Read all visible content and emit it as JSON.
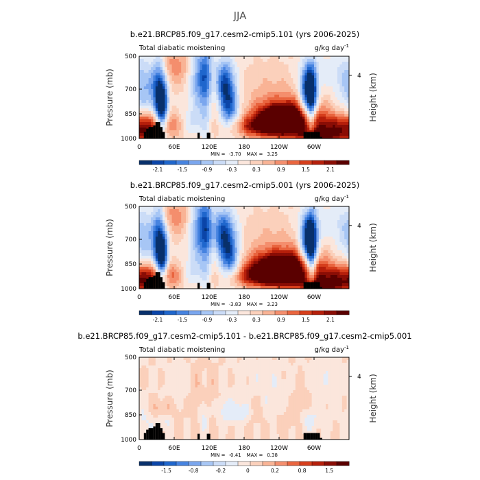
{
  "main_title": "JJA",
  "colors": {
    "palette": [
      "#08306b",
      "#0b45a8",
      "#1f66cc",
      "#4683e0",
      "#7aa6ee",
      "#a7c6f5",
      "#cbdcf7",
      "#e4ecf8",
      "#fbe6dc",
      "#fbd0bb",
      "#f9b395",
      "#f48e6d",
      "#e9653f",
      "#d63e1c",
      "#b51f0b",
      "#8a0d05",
      "#5a0000"
    ],
    "mask": "#000000",
    "frame": "#000000"
  },
  "chart_data": [
    {
      "type": "heatmap",
      "title": "b.e21.BRCP85.f09_g17.cesm2-cmip5.101 (yrs 2006-2025)",
      "left_label": "Total diabatic moistening",
      "right_label": "g/kg day",
      "unit_exponent": "-1",
      "ylabel": "Pressure (mb)",
      "ylabel_right": "Height (km)",
      "yticks": [
        "500",
        "700",
        "850",
        "1000"
      ],
      "ytick_values": [
        500,
        700,
        850,
        1000
      ],
      "right_ticks": [
        "4"
      ],
      "right_tick_pressure": 616,
      "xticks": [
        "0",
        "60E",
        "120E",
        "180",
        "120W",
        "60W"
      ],
      "xtick_values": [
        0,
        60,
        120,
        180,
        240,
        300
      ],
      "xlim": [
        0,
        360
      ],
      "ylim": [
        1000,
        500
      ],
      "min_text": "MIN =",
      "min_value": "-3.70",
      "max_text": "MAX =",
      "max_value": "3.25",
      "colorbar_labels": [
        "-2.1",
        "-1.5",
        "-0.9",
        "-0.3",
        "0.3",
        "0.9",
        "1.5",
        "2.1"
      ],
      "scale": 1.0,
      "blobs": [
        [
          245,
          880,
          32,
          55,
          2.6
        ],
        [
          265,
          870,
          38,
          80,
          1.6
        ],
        [
          218,
          930,
          40,
          40,
          1.7
        ],
        [
          310,
          980,
          25,
          30,
          1.8
        ],
        [
          340,
          930,
          30,
          55,
          1.5
        ],
        [
          40,
          915,
          22,
          55,
          1.2
        ],
        [
          12,
          960,
          18,
          60,
          0.9
        ],
        [
          150,
          650,
          60,
          200,
          -0.1
        ],
        [
          8,
          690,
          18,
          120,
          -1.1
        ],
        [
          33,
          700,
          8,
          170,
          -1.5
        ],
        [
          40,
          820,
          7,
          130,
          -2.4
        ],
        [
          103,
          620,
          12,
          140,
          -1.5
        ],
        [
          115,
          640,
          7,
          220,
          -1.0
        ],
        [
          147,
          680,
          12,
          110,
          -2.2
        ],
        [
          157,
          830,
          12,
          90,
          -1.3
        ],
        [
          290,
          700,
          10,
          100,
          -2.6
        ],
        [
          296,
          790,
          6,
          160,
          -1.7
        ],
        [
          285,
          850,
          10,
          60,
          -1.0
        ],
        [
          330,
          580,
          40,
          100,
          -0.4
        ],
        [
          90,
          900,
          14,
          60,
          -0.6
        ],
        [
          60,
          560,
          25,
          80,
          0.8
        ],
        [
          130,
          780,
          8,
          80,
          0.6
        ],
        [
          228,
          760,
          38,
          120,
          0.5
        ]
      ],
      "topography": [
        [
          8,
          960
        ],
        [
          12,
          940
        ],
        [
          16,
          930
        ],
        [
          20,
          930
        ],
        [
          24,
          920
        ],
        [
          28,
          900
        ],
        [
          32,
          900
        ],
        [
          36,
          930
        ],
        [
          40,
          960
        ],
        [
          100,
          965
        ],
        [
          116,
          965
        ],
        [
          118,
          965
        ],
        [
          282,
          960
        ],
        [
          286,
          960
        ],
        [
          290,
          960
        ],
        [
          294,
          960
        ],
        [
          298,
          960
        ],
        [
          302,
          960
        ],
        [
          306,
          960
        ],
        [
          310,
          990
        ]
      ]
    },
    {
      "type": "heatmap",
      "title": "b.e21.BRCP85.f09_g17.cesm2-cmip5.001 (yrs 2006-2025)",
      "left_label": "Total diabatic moistening",
      "right_label": "g/kg day",
      "unit_exponent": "-1",
      "ylabel": "Pressure (mb)",
      "ylabel_right": "Height (km)",
      "yticks": [
        "500",
        "700",
        "850",
        "1000"
      ],
      "ytick_values": [
        500,
        700,
        850,
        1000
      ],
      "right_ticks": [
        "4"
      ],
      "right_tick_pressure": 616,
      "xticks": [
        "0",
        "60E",
        "120E",
        "180",
        "120W",
        "60W"
      ],
      "xtick_values": [
        0,
        60,
        120,
        180,
        240,
        300
      ],
      "xlim": [
        0,
        360
      ],
      "ylim": [
        1000,
        500
      ],
      "min_text": "MIN =",
      "min_value": "-3.83",
      "max_text": "MAX =",
      "max_value": "3.23",
      "colorbar_labels": [
        "-2.1",
        "-1.5",
        "-0.9",
        "-0.3",
        "0.3",
        "0.9",
        "1.5",
        "2.1"
      ],
      "scale": 1.0,
      "blobs": [
        [
          240,
          875,
          35,
          55,
          2.5
        ],
        [
          262,
          870,
          40,
          80,
          1.6
        ],
        [
          216,
          930,
          40,
          40,
          1.7
        ],
        [
          312,
          980,
          25,
          30,
          1.9
        ],
        [
          340,
          930,
          30,
          55,
          1.5
        ],
        [
          42,
          915,
          22,
          55,
          1.3
        ],
        [
          12,
          960,
          18,
          60,
          0.9
        ],
        [
          150,
          650,
          60,
          200,
          -0.1
        ],
        [
          8,
          690,
          18,
          120,
          -1.0
        ],
        [
          33,
          700,
          8,
          170,
          -1.6
        ],
        [
          40,
          820,
          7,
          130,
          -2.3
        ],
        [
          103,
          630,
          12,
          140,
          -1.6
        ],
        [
          115,
          640,
          7,
          220,
          -1.1
        ],
        [
          145,
          680,
          14,
          110,
          -2.3
        ],
        [
          157,
          830,
          12,
          90,
          -1.4
        ],
        [
          291,
          690,
          10,
          100,
          -2.7
        ],
        [
          296,
          790,
          6,
          160,
          -1.8
        ],
        [
          285,
          850,
          10,
          60,
          -1.0
        ],
        [
          330,
          580,
          40,
          100,
          -0.4
        ],
        [
          90,
          900,
          14,
          60,
          -0.6
        ],
        [
          60,
          560,
          25,
          80,
          0.8
        ],
        [
          130,
          780,
          8,
          80,
          0.6
        ],
        [
          228,
          760,
          38,
          120,
          0.5
        ]
      ],
      "topography": [
        [
          8,
          960
        ],
        [
          12,
          940
        ],
        [
          16,
          930
        ],
        [
          20,
          930
        ],
        [
          24,
          920
        ],
        [
          28,
          900
        ],
        [
          32,
          900
        ],
        [
          36,
          930
        ],
        [
          40,
          960
        ],
        [
          100,
          965
        ],
        [
          116,
          965
        ],
        [
          118,
          965
        ],
        [
          282,
          960
        ],
        [
          286,
          960
        ],
        [
          290,
          960
        ],
        [
          294,
          960
        ],
        [
          298,
          960
        ],
        [
          302,
          960
        ],
        [
          306,
          960
        ],
        [
          310,
          990
        ]
      ]
    },
    {
      "type": "heatmap",
      "title": "b.e21.BRCP85.f09_g17.cesm2-cmip5.101 - b.e21.BRCP85.f09_g17.cesm2-cmip5.001",
      "left_label": "Total diabatic moistening",
      "right_label": "g/kg day",
      "unit_exponent": "-1",
      "ylabel": "Pressure (mb)",
      "ylabel_right": "Height (km)",
      "yticks": [
        "500",
        "700",
        "850",
        "1000"
      ],
      "ytick_values": [
        500,
        700,
        850,
        1000
      ],
      "right_ticks": [
        "4"
      ],
      "right_tick_pressure": 616,
      "xticks": [
        "0",
        "60E",
        "120E",
        "180",
        "120W",
        "60W"
      ],
      "xtick_values": [
        0,
        60,
        120,
        180,
        240,
        300
      ],
      "xlim": [
        0,
        360
      ],
      "ylim": [
        1000,
        500
      ],
      "min_text": "MIN =",
      "min_value": "-0.41",
      "max_text": "MAX =",
      "max_value": "0.38",
      "colorbar_labels": [
        "-1.5",
        "-0.8",
        "-0.2",
        "0",
        "0.2",
        "0.8",
        "1.5"
      ],
      "scale": 0.12,
      "blobs": [
        [
          35,
          820,
          12,
          40,
          0.25
        ],
        [
          45,
          880,
          14,
          40,
          -0.25
        ],
        [
          100,
          700,
          8,
          120,
          0.18
        ],
        [
          110,
          850,
          6,
          80,
          -0.22
        ],
        [
          125,
          700,
          6,
          100,
          0.12
        ],
        [
          150,
          820,
          10,
          50,
          -0.3
        ],
        [
          175,
          830,
          12,
          40,
          -0.35
        ],
        [
          200,
          820,
          10,
          60,
          0.15
        ],
        [
          230,
          750,
          20,
          100,
          -0.14
        ],
        [
          250,
          880,
          15,
          60,
          0.12
        ],
        [
          278,
          800,
          10,
          80,
          0.15
        ],
        [
          290,
          880,
          12,
          50,
          -0.25
        ],
        [
          70,
          650,
          20,
          100,
          -0.1
        ],
        [
          320,
          650,
          20,
          150,
          -0.12
        ],
        [
          8,
          900,
          10,
          80,
          -0.2
        ],
        [
          60,
          850,
          10,
          60,
          0.14
        ],
        [
          200,
          600,
          30,
          80,
          -0.08
        ]
      ],
      "topography": [
        [
          8,
          960
        ],
        [
          12,
          940
        ],
        [
          16,
          930
        ],
        [
          20,
          930
        ],
        [
          24,
          920
        ],
        [
          28,
          900
        ],
        [
          32,
          900
        ],
        [
          36,
          930
        ],
        [
          40,
          960
        ],
        [
          100,
          965
        ],
        [
          116,
          965
        ],
        [
          118,
          965
        ],
        [
          282,
          960
        ],
        [
          286,
          960
        ],
        [
          290,
          960
        ],
        [
          294,
          960
        ],
        [
          298,
          960
        ],
        [
          302,
          960
        ],
        [
          306,
          960
        ],
        [
          310,
          990
        ]
      ]
    }
  ]
}
